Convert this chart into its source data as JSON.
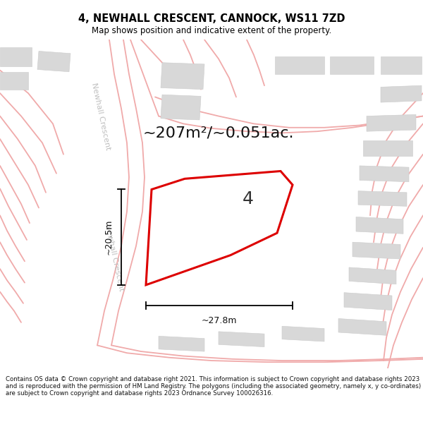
{
  "title": "4, NEWHALL CRESCENT, CANNOCK, WS11 7ZD",
  "subtitle": "Map shows position and indicative extent of the property.",
  "area_text": "~207m²/~0.051ac.",
  "plot_number": "4",
  "dim_width": "~27.8m",
  "dim_height": "~20.5m",
  "footer": "Contains OS data © Crown copyright and database right 2021. This information is subject to Crown copyright and database rights 2023 and is reproduced with the permission of HM Land Registry. The polygons (including the associated geometry, namely x, y co-ordinates) are subject to Crown copyright and database rights 2023 Ordnance Survey 100026316.",
  "bg_color": "#ffffff",
  "road_color": "#f0aaaa",
  "block_color": "#d8d8d8",
  "block_edge": "#cccccc",
  "plot_color": "#dd0000",
  "street_color": "#c0c0c0",
  "dim_color": "#111111",
  "title_fontsize": 10.5,
  "subtitle_fontsize": 8.5,
  "footer_fontsize": 6.2,
  "area_fontsize": 16,
  "plot_num_fontsize": 18,
  "dim_fontsize": 9,
  "street_fontsize": 8
}
